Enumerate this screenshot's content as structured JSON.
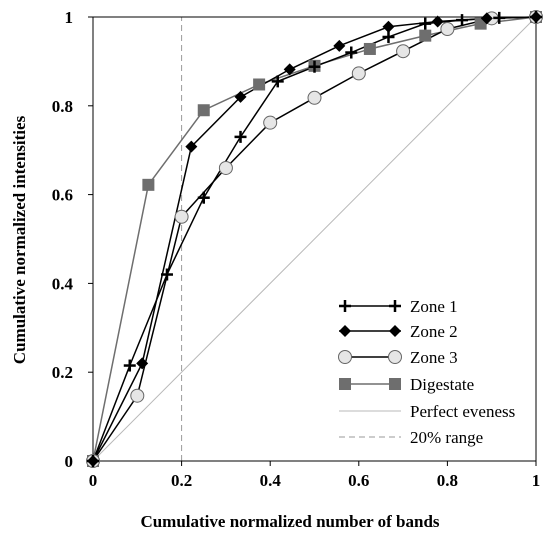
{
  "chart_data": {
    "type": "line",
    "xlabel": "Cumulative normalized number of bands",
    "ylabel": "Cumulative normalized intensities",
    "xlim": [
      0,
      1
    ],
    "ylim": [
      0,
      1
    ],
    "x_ticks": [
      "0",
      "0.2",
      "0.4",
      "0.6",
      "0.8",
      "1"
    ],
    "y_ticks": [
      "0",
      "0.2",
      "0.4",
      "0.6",
      "0.8",
      "1"
    ],
    "grid": false,
    "legend_position": "bottom-right",
    "series": [
      {
        "name": "Zone 1",
        "marker": "plus",
        "color": "#000000",
        "points": [
          [
            0,
            0
          ],
          [
            0.083,
            0.215
          ],
          [
            0.167,
            0.42
          ],
          [
            0.25,
            0.593
          ],
          [
            0.333,
            0.73
          ],
          [
            0.417,
            0.855
          ],
          [
            0.5,
            0.888
          ],
          [
            0.583,
            0.92
          ],
          [
            0.667,
            0.955
          ],
          [
            0.75,
            0.985
          ],
          [
            0.833,
            0.993
          ],
          [
            0.917,
            0.998
          ],
          [
            1,
            1
          ]
        ]
      },
      {
        "name": "Zone 2",
        "marker": "diamond",
        "color": "#000000",
        "points": [
          [
            0,
            0
          ],
          [
            0.111,
            0.22
          ],
          [
            0.222,
            0.708
          ],
          [
            0.333,
            0.82
          ],
          [
            0.444,
            0.882
          ],
          [
            0.556,
            0.935
          ],
          [
            0.667,
            0.978
          ],
          [
            0.778,
            0.99
          ],
          [
            0.889,
            0.997
          ],
          [
            1,
            1
          ]
        ]
      },
      {
        "name": "Zone 3",
        "marker": "circle",
        "color": "#000000",
        "fill": "#e6e6e6",
        "points": [
          [
            0,
            0
          ],
          [
            0.1,
            0.147
          ],
          [
            0.2,
            0.55
          ],
          [
            0.3,
            0.66
          ],
          [
            0.4,
            0.762
          ],
          [
            0.5,
            0.818
          ],
          [
            0.6,
            0.873
          ],
          [
            0.7,
            0.923
          ],
          [
            0.8,
            0.973
          ],
          [
            0.9,
            0.997
          ],
          [
            1,
            1
          ]
        ]
      },
      {
        "name": "Digestate",
        "marker": "square",
        "color": "#6e6e6e",
        "points": [
          [
            0,
            0
          ],
          [
            0.125,
            0.622
          ],
          [
            0.25,
            0.79
          ],
          [
            0.375,
            0.848
          ],
          [
            0.5,
            0.89
          ],
          [
            0.625,
            0.928
          ],
          [
            0.75,
            0.958
          ],
          [
            0.875,
            0.985
          ],
          [
            1,
            1
          ]
        ]
      },
      {
        "name": "Perfect eveness",
        "marker": "none",
        "color": "#b8b8b8",
        "points": [
          [
            0,
            0
          ],
          [
            1,
            1
          ]
        ]
      },
      {
        "name": "20% range",
        "marker": "none",
        "color": "#9a9a9a",
        "dashed": true,
        "points": [
          [
            0.2,
            0
          ],
          [
            0.2,
            1
          ]
        ]
      }
    ]
  }
}
